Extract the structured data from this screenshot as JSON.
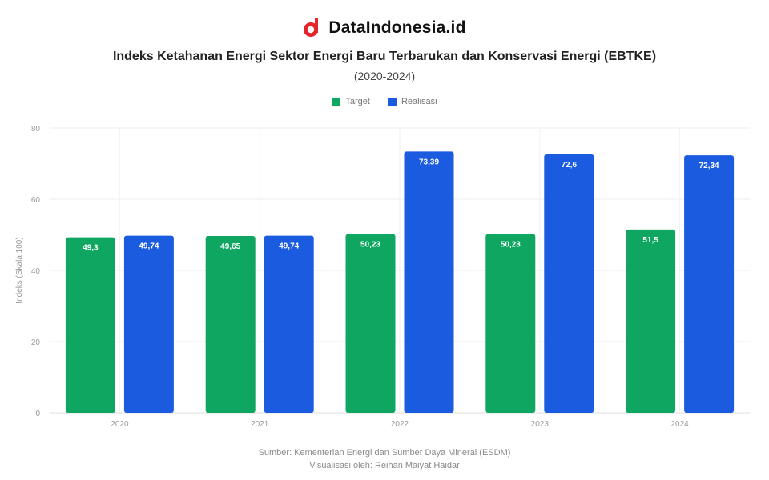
{
  "brand": {
    "name": "DataIndonesia.id",
    "logo_icon": "datainsight-logo-icon"
  },
  "chart_data": {
    "type": "bar",
    "title": "Indeks Ketahanan Energi Sektor Energi Baru Terbarukan dan Konservasi Energi (EBTKE)",
    "subtitle": "(2020-2024)",
    "ylabel": "Indeks (Skala 100)",
    "xlabel": "",
    "categories": [
      "2020",
      "2021",
      "2022",
      "2023",
      "2024"
    ],
    "series": [
      {
        "name": "Target",
        "color": "#0ea661",
        "values": [
          49.3,
          49.65,
          50.23,
          50.23,
          51.5
        ],
        "labels": [
          "49,3",
          "49,65",
          "50,23",
          "50,23",
          "51,5"
        ]
      },
      {
        "name": "Realisasi",
        "color": "#1a5be0",
        "values": [
          49.74,
          49.74,
          73.39,
          72.6,
          72.34
        ],
        "labels": [
          "49,74",
          "49,74",
          "73,39",
          "72,6",
          "72,34"
        ]
      }
    ],
    "ylim": [
      0,
      80
    ],
    "yticks": [
      0,
      20,
      40,
      60,
      80
    ],
    "grid": true,
    "legend": "top-center"
  },
  "footer": {
    "source": "Sumber: Kementerian Energi dan Sumber Daya Mineral (ESDM)",
    "credit": "Visualisasi oleh: Reihan Maiyat Haidar"
  }
}
